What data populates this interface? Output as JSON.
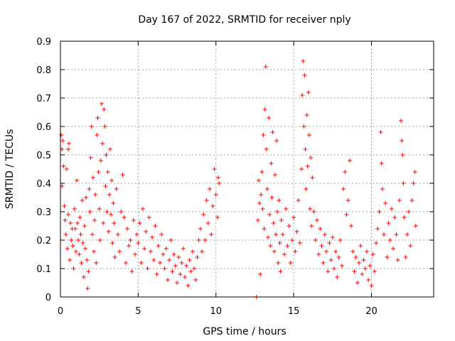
{
  "chart_data": {
    "type": "scatter",
    "title": "Day 167 of 2022, SRMTID for receiver nply",
    "xlabel": "GPS time / hours",
    "ylabel": "SRMTID / TECUs",
    "xlim": [
      0,
      24
    ],
    "ylim": [
      0,
      0.9
    ],
    "xticks": [
      0,
      5,
      10,
      15,
      20
    ],
    "xtick_labels": [
      "0",
      "5",
      "10",
      "15",
      "20"
    ],
    "yticks": [
      0,
      0.1,
      0.2,
      0.3,
      0.4,
      0.5,
      0.6,
      0.7,
      0.8,
      0.9
    ],
    "ytick_labels": [
      "0",
      "0.1",
      "0.2",
      "0.3",
      "0.4",
      "0.5",
      "0.6",
      "0.7",
      "0.8",
      "0.9"
    ],
    "grid": true,
    "marker": "plus",
    "color": "#ff0000",
    "series": [
      {
        "name": "SRMTID",
        "points": [
          [
            0.05,
            0.57
          ],
          [
            0.1,
            0.52
          ],
          [
            0.1,
            0.39
          ],
          [
            0.15,
            0.55
          ],
          [
            0.2,
            0.46
          ],
          [
            0.25,
            0.32
          ],
          [
            0.3,
            0.27
          ],
          [
            0.35,
            0.22
          ],
          [
            0.4,
            0.45
          ],
          [
            0.45,
            0.17
          ],
          [
            0.5,
            0.29
          ],
          [
            0.5,
            0.52
          ],
          [
            0.55,
            0.54
          ],
          [
            0.6,
            0.13
          ],
          [
            0.65,
            0.26
          ],
          [
            0.7,
            0.2
          ],
          [
            0.75,
            0.24
          ],
          [
            0.8,
            0.18
          ],
          [
            0.85,
            0.1
          ],
          [
            0.9,
            0.31
          ],
          [
            0.95,
            0.24
          ],
          [
            1.0,
            0.16
          ],
          [
            1.05,
            0.41
          ],
          [
            1.1,
            0.26
          ],
          [
            1.15,
            0.2
          ],
          [
            1.2,
            0.15
          ],
          [
            1.25,
            0.28
          ],
          [
            1.3,
            0.22
          ],
          [
            1.35,
            0.12
          ],
          [
            1.4,
            0.34
          ],
          [
            1.45,
            0.19
          ],
          [
            1.5,
            0.07
          ],
          [
            1.55,
            0.25
          ],
          [
            1.6,
            0.17
          ],
          [
            1.65,
            0.35
          ],
          [
            1.7,
            0.13
          ],
          [
            1.75,
            0.03
          ],
          [
            1.8,
            0.09
          ],
          [
            1.85,
            0.38
          ],
          [
            1.9,
            0.3
          ],
          [
            1.95,
            0.49
          ],
          [
            2.0,
            0.6
          ],
          [
            2.05,
            0.22
          ],
          [
            2.1,
            0.42
          ],
          [
            2.15,
            0.16
          ],
          [
            2.2,
            0.27
          ],
          [
            2.25,
            0.36
          ],
          [
            2.3,
            0.12
          ],
          [
            2.35,
            0.57
          ],
          [
            2.4,
            0.63
          ],
          [
            2.45,
            0.44
          ],
          [
            2.5,
            0.31
          ],
          [
            2.55,
            0.2
          ],
          [
            2.6,
            0.48
          ],
          [
            2.65,
            0.68
          ],
          [
            2.7,
            0.54
          ],
          [
            2.75,
            0.26
          ],
          [
            2.8,
            0.66
          ],
          [
            2.85,
            0.6
          ],
          [
            2.9,
            0.39
          ],
          [
            2.95,
            0.5
          ],
          [
            3.0,
            0.3
          ],
          [
            3.05,
            0.44
          ],
          [
            3.1,
            0.23
          ],
          [
            3.15,
            0.36
          ],
          [
            3.2,
            0.52
          ],
          [
            3.25,
            0.29
          ],
          [
            3.3,
            0.41
          ],
          [
            3.35,
            0.19
          ],
          [
            3.4,
            0.33
          ],
          [
            3.45,
            0.26
          ],
          [
            3.5,
            0.14
          ],
          [
            3.6,
            0.38
          ],
          [
            3.7,
            0.22
          ],
          [
            3.8,
            0.16
          ],
          [
            3.9,
            0.3
          ],
          [
            4.0,
            0.43
          ],
          [
            4.1,
            0.28
          ],
          [
            4.2,
            0.12
          ],
          [
            4.3,
            0.24
          ],
          [
            4.4,
            0.18
          ],
          [
            4.5,
            0.2
          ],
          [
            4.6,
            0.09
          ],
          [
            4.7,
            0.27
          ],
          [
            4.8,
            0.15
          ],
          [
            4.9,
            0.22
          ],
          [
            5.0,
            0.19
          ],
          [
            5.1,
            0.26
          ],
          [
            5.2,
            0.12
          ],
          [
            5.3,
            0.31
          ],
          [
            5.4,
            0.17
          ],
          [
            5.5,
            0.23
          ],
          [
            5.6,
            0.1
          ],
          [
            5.7,
            0.28
          ],
          [
            5.8,
            0.16
          ],
          [
            5.9,
            0.21
          ],
          [
            6.0,
            0.13
          ],
          [
            6.1,
            0.25
          ],
          [
            6.2,
            0.08
          ],
          [
            6.3,
            0.18
          ],
          [
            6.4,
            0.12
          ],
          [
            6.5,
            0.22
          ],
          [
            6.6,
            0.15
          ],
          [
            6.7,
            0.1
          ],
          [
            6.8,
            0.17
          ],
          [
            6.9,
            0.06
          ],
          [
            7.0,
            0.13
          ],
          [
            7.1,
            0.2
          ],
          [
            7.2,
            0.09
          ],
          [
            7.3,
            0.15
          ],
          [
            7.4,
            0.11
          ],
          [
            7.5,
            0.05
          ],
          [
            7.6,
            0.14
          ],
          [
            7.7,
            0.08
          ],
          [
            7.8,
            0.12
          ],
          [
            7.9,
            0.17
          ],
          [
            8.0,
            0.07
          ],
          [
            8.1,
            0.11
          ],
          [
            8.2,
            0.04
          ],
          [
            8.3,
            0.13
          ],
          [
            8.4,
            0.09
          ],
          [
            8.5,
            0.16
          ],
          [
            8.6,
            0.1
          ],
          [
            8.7,
            0.06
          ],
          [
            8.8,
            0.14
          ],
          [
            8.9,
            0.2
          ],
          [
            9.0,
            0.24
          ],
          [
            9.1,
            0.16
          ],
          [
            9.2,
            0.29
          ],
          [
            9.3,
            0.2
          ],
          [
            9.4,
            0.34
          ],
          [
            9.5,
            0.26
          ],
          [
            9.6,
            0.38
          ],
          [
            9.7,
            0.22
          ],
          [
            9.8,
            0.32
          ],
          [
            9.9,
            0.45
          ],
          [
            10.0,
            0.36
          ],
          [
            10.1,
            0.28
          ],
          [
            10.15,
            0.42
          ],
          [
            10.2,
            0.4
          ],
          [
            12.6,
            0.0
          ],
          [
            12.7,
            0.27
          ],
          [
            12.75,
            0.41
          ],
          [
            12.8,
            0.33
          ],
          [
            12.85,
            0.08
          ],
          [
            12.9,
            0.36
          ],
          [
            12.95,
            0.44
          ],
          [
            13.0,
            0.31
          ],
          [
            13.05,
            0.57
          ],
          [
            13.1,
            0.24
          ],
          [
            13.15,
            0.66
          ],
          [
            13.2,
            0.81
          ],
          [
            13.25,
            0.52
          ],
          [
            13.3,
            0.38
          ],
          [
            13.35,
            0.21
          ],
          [
            13.4,
            0.63
          ],
          [
            13.45,
            0.29
          ],
          [
            13.5,
            0.18
          ],
          [
            13.55,
            0.47
          ],
          [
            13.6,
            0.35
          ],
          [
            13.65,
            0.58
          ],
          [
            13.7,
            0.26
          ],
          [
            13.75,
            0.16
          ],
          [
            13.8,
            0.43
          ],
          [
            13.85,
            0.22
          ],
          [
            13.9,
            0.55
          ],
          [
            13.95,
            0.3
          ],
          [
            14.0,
            0.12
          ],
          [
            14.05,
            0.34
          ],
          [
            14.1,
            0.19
          ],
          [
            14.15,
            0.09
          ],
          [
            14.2,
            0.27
          ],
          [
            14.3,
            0.22
          ],
          [
            14.4,
            0.15
          ],
          [
            14.5,
            0.31
          ],
          [
            14.6,
            0.18
          ],
          [
            14.7,
            0.25
          ],
          [
            14.8,
            0.12
          ],
          [
            14.9,
            0.2
          ],
          [
            15.0,
            0.28
          ],
          [
            15.1,
            0.16
          ],
          [
            15.2,
            0.23
          ],
          [
            15.3,
            0.34
          ],
          [
            15.4,
            0.19
          ],
          [
            15.5,
            0.45
          ],
          [
            15.55,
            0.71
          ],
          [
            15.6,
            0.83
          ],
          [
            15.65,
            0.6
          ],
          [
            15.7,
            0.78
          ],
          [
            15.75,
            0.52
          ],
          [
            15.8,
            0.38
          ],
          [
            15.85,
            0.64
          ],
          [
            15.9,
            0.46
          ],
          [
            15.95,
            0.72
          ],
          [
            16.0,
            0.57
          ],
          [
            16.05,
            0.31
          ],
          [
            16.1,
            0.49
          ],
          [
            16.15,
            0.25
          ],
          [
            16.2,
            0.42
          ],
          [
            16.3,
            0.3
          ],
          [
            16.4,
            0.2
          ],
          [
            16.5,
            0.27
          ],
          [
            16.6,
            0.15
          ],
          [
            16.7,
            0.24
          ],
          [
            16.8,
            0.18
          ],
          [
            16.9,
            0.12
          ],
          [
            17.0,
            0.22
          ],
          [
            17.1,
            0.16
          ],
          [
            17.2,
            0.09
          ],
          [
            17.3,
            0.19
          ],
          [
            17.4,
            0.13
          ],
          [
            17.5,
            0.21
          ],
          [
            17.6,
            0.1
          ],
          [
            17.7,
            0.16
          ],
          [
            17.8,
            0.07
          ],
          [
            17.9,
            0.14
          ],
          [
            18.0,
            0.2
          ],
          [
            18.1,
            0.11
          ],
          [
            18.2,
            0.38
          ],
          [
            18.3,
            0.44
          ],
          [
            18.4,
            0.29
          ],
          [
            18.5,
            0.34
          ],
          [
            18.6,
            0.48
          ],
          [
            18.7,
            0.25
          ],
          [
            18.8,
            0.16
          ],
          [
            18.9,
            0.09
          ],
          [
            19.0,
            0.14
          ],
          [
            19.1,
            0.05
          ],
          [
            19.2,
            0.12
          ],
          [
            19.3,
            0.18
          ],
          [
            19.4,
            0.08
          ],
          [
            19.5,
            0.13
          ],
          [
            19.6,
            0.1
          ],
          [
            19.7,
            0.16
          ],
          [
            19.8,
            0.06
          ],
          [
            19.9,
            0.11
          ],
          [
            20.0,
            0.04
          ],
          [
            20.1,
            0.15
          ],
          [
            20.2,
            0.09
          ],
          [
            20.3,
            0.19
          ],
          [
            20.4,
            0.24
          ],
          [
            20.5,
            0.3
          ],
          [
            20.6,
            0.58
          ],
          [
            20.65,
            0.47
          ],
          [
            20.7,
            0.38
          ],
          [
            20.8,
            0.22
          ],
          [
            20.9,
            0.33
          ],
          [
            21.0,
            0.14
          ],
          [
            21.1,
            0.26
          ],
          [
            21.2,
            0.2
          ],
          [
            21.3,
            0.31
          ],
          [
            21.4,
            0.17
          ],
          [
            21.5,
            0.28
          ],
          [
            21.6,
            0.22
          ],
          [
            21.7,
            0.13
          ],
          [
            21.8,
            0.34
          ],
          [
            21.9,
            0.62
          ],
          [
            21.95,
            0.55
          ],
          [
            22.0,
            0.5
          ],
          [
            22.05,
            0.4
          ],
          [
            22.1,
            0.28
          ],
          [
            22.2,
            0.14
          ],
          [
            22.3,
            0.22
          ],
          [
            22.4,
            0.3
          ],
          [
            22.5,
            0.18
          ],
          [
            22.6,
            0.34
          ],
          [
            22.7,
            0.4
          ],
          [
            22.8,
            0.44
          ],
          [
            22.85,
            0.25
          ]
        ]
      }
    ]
  }
}
